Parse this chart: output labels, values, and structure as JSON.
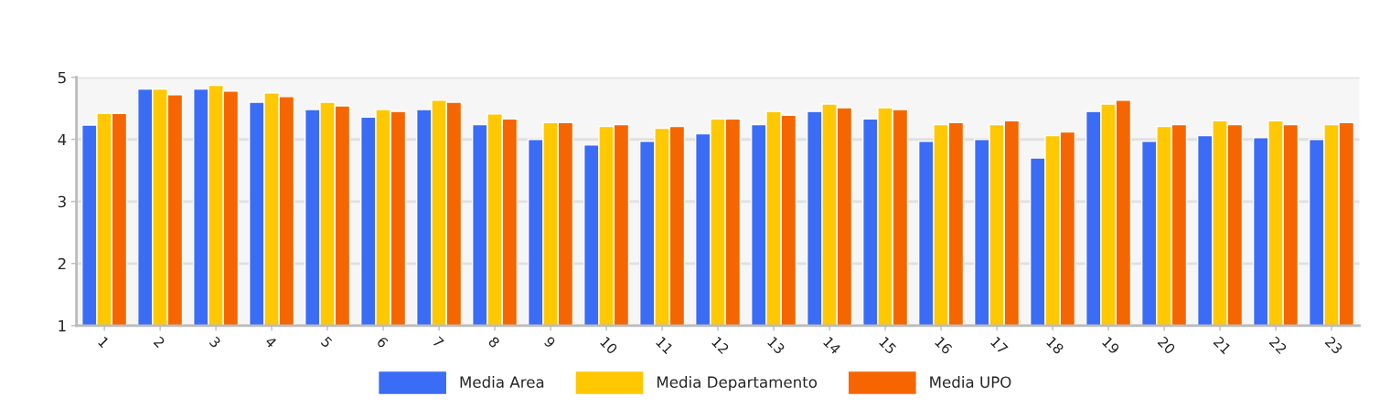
{
  "chart_data": {
    "type": "bar",
    "categories": [
      "1",
      "2",
      "3",
      "4",
      "5",
      "6",
      "7",
      "8",
      "9",
      "10",
      "11",
      "12",
      "13",
      "14",
      "15",
      "16",
      "17",
      "18",
      "19",
      "20",
      "21",
      "22",
      "23"
    ],
    "series": [
      {
        "name": "Media Area",
        "color": "#3b6cf6",
        "values": [
          4.23,
          4.81,
          4.81,
          4.6,
          4.48,
          4.36,
          4.48,
          4.24,
          4.0,
          3.91,
          3.97,
          4.09,
          4.24,
          4.45,
          4.33,
          3.97,
          4.0,
          3.7,
          4.45,
          3.97,
          4.06,
          4.03,
          4.0
        ]
      },
      {
        "name": "Media Departamento",
        "color": "#ffc800",
        "values": [
          4.42,
          4.81,
          4.87,
          4.75,
          4.6,
          4.48,
          4.63,
          4.41,
          4.27,
          4.21,
          4.18,
          4.33,
          4.45,
          4.57,
          4.51,
          4.24,
          4.24,
          4.06,
          4.57,
          4.21,
          4.3,
          4.3,
          4.24
        ]
      },
      {
        "name": "Media UPO",
        "color": "#f66600",
        "values": [
          4.42,
          4.72,
          4.78,
          4.69,
          4.54,
          4.45,
          4.6,
          4.33,
          4.27,
          4.24,
          4.21,
          4.33,
          4.39,
          4.51,
          4.48,
          4.27,
          4.3,
          4.12,
          4.63,
          4.24,
          4.24,
          4.24,
          4.27
        ]
      }
    ],
    "ylim": [
      1,
      5
    ],
    "yticks": [
      1,
      2,
      3,
      4,
      5
    ],
    "grid": "y",
    "legend": "bottom"
  }
}
